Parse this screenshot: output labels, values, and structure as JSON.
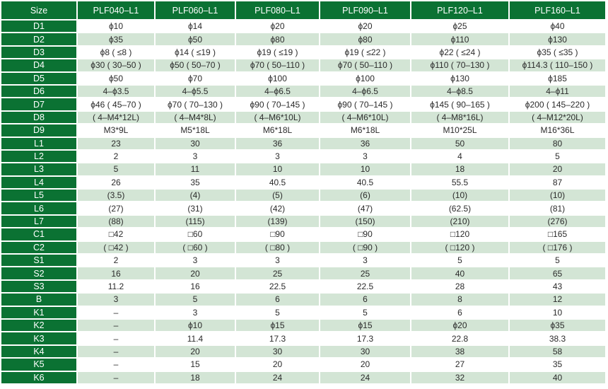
{
  "colors": {
    "header_green": "#0b7233",
    "stripe": "#d3e5d5",
    "text": "#2b2b2b"
  },
  "table": {
    "headers": [
      "Size",
      "PLF040–L1",
      "PLF060–L1",
      "PLF080–L1",
      "PLF090–L1",
      "PLF120–L1",
      "PLF160–L1"
    ],
    "rows": [
      {
        "label": "D1",
        "values": [
          "ϕ10",
          "ϕ14",
          "ϕ20",
          "ϕ20",
          "ϕ25",
          "ϕ40"
        ]
      },
      {
        "label": "D2",
        "values": [
          "ϕ35",
          "ϕ50",
          "ϕ80",
          "ϕ80",
          "ϕ110",
          "ϕ130"
        ]
      },
      {
        "label": "D3",
        "values": [
          "ϕ8 ( ≤8 )",
          "ϕ14 ( ≤19 )",
          "ϕ19 ( ≤19 )",
          "ϕ19 ( ≤22 )",
          "ϕ22 ( ≤24 )",
          "ϕ35 ( ≤35 )"
        ]
      },
      {
        "label": "D4",
        "values": [
          "ϕ30 ( 30–50 )",
          "ϕ50 ( 50–70 )",
          "ϕ70 ( 50–110 )",
          "ϕ70 ( 50–110 )",
          "ϕ110 ( 70–130 )",
          "ϕ114.3 ( 110–150 )"
        ]
      },
      {
        "label": "D5",
        "values": [
          "ϕ50",
          "ϕ70",
          "ϕ100",
          "ϕ100",
          "ϕ130",
          "ϕ185"
        ]
      },
      {
        "label": "D6",
        "values": [
          "4–ϕ3.5",
          "4–ϕ5.5",
          "4–ϕ6.5",
          "4–ϕ6.5",
          "4–ϕ8.5",
          "4–ϕ11"
        ]
      },
      {
        "label": "D7",
        "values": [
          "ϕ46 ( 45–70 )",
          "ϕ70 ( 70–130 )",
          "ϕ90 ( 70–145 )",
          "ϕ90 ( 70–145 )",
          "ϕ145 ( 90–165 )",
          "ϕ200 ( 145–220 )"
        ]
      },
      {
        "label": "D8",
        "values": [
          "( 4–M4*12L)",
          "( 4–M4*8L)",
          "( 4–M6*10L)",
          "( 4–M6*10L)",
          "( 4–M8*16L)",
          "( 4–M12*20L)"
        ]
      },
      {
        "label": "D9",
        "values": [
          "M3*9L",
          "M5*18L",
          "M6*18L",
          "M6*18L",
          "M10*25L",
          "M16*36L"
        ]
      },
      {
        "label": "L1",
        "values": [
          "23",
          "30",
          "36",
          "36",
          "50",
          "80"
        ]
      },
      {
        "label": "L2",
        "values": [
          "2",
          "3",
          "3",
          "3",
          "4",
          "5"
        ]
      },
      {
        "label": "L3",
        "values": [
          "5",
          "11",
          "10",
          "10",
          "18",
          "20"
        ]
      },
      {
        "label": "L4",
        "values": [
          "26",
          "35",
          "40.5",
          "40.5",
          "55.5",
          "87"
        ]
      },
      {
        "label": "L5",
        "values": [
          "(3.5)",
          "(4)",
          "(5)",
          "(6)",
          "(10)",
          "(10)"
        ]
      },
      {
        "label": "L6",
        "values": [
          "(27)",
          "(31)",
          "(42)",
          "(47)",
          "(62.5)",
          "(81)"
        ]
      },
      {
        "label": "L7",
        "values": [
          "(88)",
          "(115)",
          "(139)",
          "(150)",
          "(210)",
          "(276)"
        ]
      },
      {
        "label": "C1",
        "values": [
          "□42",
          "□60",
          "□90",
          "□90",
          "□120",
          "□165"
        ]
      },
      {
        "label": "C2",
        "values": [
          "( □42 )",
          "( □60 )",
          "( □80 )",
          "( □90 )",
          "( □120 )",
          "( □176 )"
        ]
      },
      {
        "label": "S1",
        "values": [
          "2",
          "3",
          "3",
          "3",
          "5",
          "5"
        ]
      },
      {
        "label": "S2",
        "values": [
          "16",
          "20",
          "25",
          "25",
          "40",
          "65"
        ]
      },
      {
        "label": "S3",
        "values": [
          "11.2",
          "16",
          "22.5",
          "22.5",
          "28",
          "43"
        ]
      },
      {
        "label": "B",
        "values": [
          "3",
          "5",
          "6",
          "6",
          "8",
          "12"
        ]
      },
      {
        "label": "K1",
        "values": [
          "–",
          "3",
          "5",
          "5",
          "6",
          "10"
        ]
      },
      {
        "label": "K2",
        "values": [
          "–",
          "ϕ10",
          "ϕ15",
          "ϕ15",
          "ϕ20",
          "ϕ35"
        ]
      },
      {
        "label": "K3",
        "values": [
          "–",
          "11.4",
          "17.3",
          "17.3",
          "22.8",
          "38.3"
        ]
      },
      {
        "label": "K4",
        "values": [
          "–",
          "20",
          "30",
          "30",
          "38",
          "58"
        ]
      },
      {
        "label": "K5",
        "values": [
          "–",
          "15",
          "20",
          "20",
          "27",
          "35"
        ]
      },
      {
        "label": "K6",
        "values": [
          "–",
          "18",
          "24",
          "24",
          "32",
          "40"
        ]
      }
    ]
  }
}
